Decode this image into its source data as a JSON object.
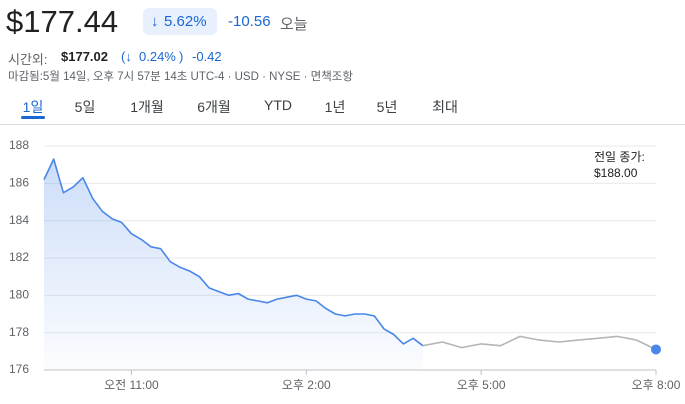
{
  "header": {
    "price": "$177.44",
    "change_pct": "5.62%",
    "change_abs": "-10.56",
    "change_period": "오늘",
    "after_label": "시간외:",
    "after_price": "$177.02",
    "after_pct": "0.24%",
    "after_abs": "-0.42",
    "status": "마감됨:5월 14일, 오후 7시 57분 14초 UTC-4 · USD · NYSE · 면책조항"
  },
  "tabs": [
    "1일",
    "5일",
    "1개월",
    "6개월",
    "YTD",
    "1년",
    "5년",
    "최대"
  ],
  "chart_data": {
    "type": "line",
    "xlim": [
      570,
      1200
    ],
    "ylim": [
      176,
      188
    ],
    "yticks": [
      176,
      178,
      180,
      182,
      184,
      186,
      188
    ],
    "xticks": [
      {
        "value": 660,
        "label": "오전 11:00"
      },
      {
        "value": 840,
        "label": "오후 2:00"
      },
      {
        "value": 1020,
        "label": "오후 5:00"
      },
      {
        "value": 1200,
        "label": "오후 8:00"
      }
    ],
    "grid": true,
    "reference": {
      "label": "전일 종가:",
      "value": 188,
      "value_label": "$188.00"
    },
    "series": [
      {
        "color": "#4a86e8",
        "fill": true,
        "x": [
          570,
          580,
          590,
          600,
          610,
          620,
          630,
          640,
          650,
          660,
          670,
          680,
          690,
          700,
          710,
          720,
          730,
          740,
          750,
          760,
          770,
          780,
          790,
          800,
          810,
          820,
          830,
          840,
          850,
          860,
          870,
          880,
          890,
          900,
          910,
          920,
          930,
          940,
          950,
          960
        ],
        "values": [
          186.2,
          187.3,
          185.5,
          185.8,
          186.3,
          185.2,
          184.5,
          184.1,
          183.9,
          183.3,
          183.0,
          182.6,
          182.5,
          181.8,
          181.5,
          181.3,
          181.0,
          180.4,
          180.2,
          180.0,
          180.1,
          179.8,
          179.7,
          179.6,
          179.8,
          179.9,
          180.0,
          179.8,
          179.7,
          179.3,
          179.0,
          178.9,
          179.0,
          179.0,
          178.9,
          178.2,
          177.9,
          177.4,
          177.7,
          177.3
        ]
      },
      {
        "color": "#b5b5b5",
        "fill": false,
        "x": [
          960,
          980,
          1000,
          1020,
          1040,
          1060,
          1080,
          1100,
          1120,
          1140,
          1160,
          1180,
          1200
        ],
        "values": [
          177.3,
          177.5,
          177.2,
          177.4,
          177.3,
          177.8,
          177.6,
          177.5,
          177.6,
          177.7,
          177.8,
          177.6,
          177.1
        ]
      }
    ]
  }
}
